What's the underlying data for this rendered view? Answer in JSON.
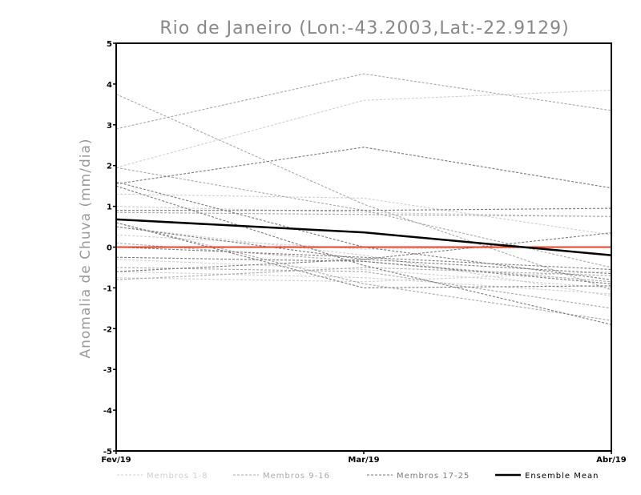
{
  "chart_data": {
    "type": "line",
    "title": "Rio de Janeiro (Lon:-43.2003,Lat:-22.9129)",
    "xlabel": "",
    "ylabel": "Anomalia de Chuva (mm/dia)",
    "categories": [
      "Fev/19",
      "Mar/19",
      "Abr/19"
    ],
    "ylim": [
      -5,
      5
    ],
    "yticks": [
      "5",
      "4",
      "3",
      "2",
      "1",
      "0",
      "-1",
      "-2",
      "-3",
      "-4",
      "-5"
    ],
    "grid": false,
    "legend_position": "bottom",
    "zero_line_color": "#e8412f",
    "groups": [
      {
        "name": "Membros 1-8",
        "color": "#cfcfcf",
        "series": [
          {
            "values": [
              1.95,
              3.6,
              3.85
            ]
          },
          {
            "values": [
              1.3,
              1.2,
              0.3
            ]
          },
          {
            "values": [
              1.0,
              0.85,
              0.75
            ]
          },
          {
            "values": [
              0.3,
              -0.05,
              0.0
            ]
          },
          {
            "values": [
              -0.3,
              -0.55,
              -1.0
            ]
          },
          {
            "values": [
              -0.6,
              -0.75,
              -1.15
            ]
          },
          {
            "values": [
              -0.75,
              -0.85,
              -0.6
            ]
          },
          {
            "values": [
              0.5,
              -0.2,
              -1.2
            ]
          }
        ]
      },
      {
        "name": "Membros 9-16",
        "color": "#a8a8a8",
        "series": [
          {
            "values": [
              2.9,
              4.25,
              3.35
            ]
          },
          {
            "values": [
              3.75,
              1.05,
              -1.05
            ]
          },
          {
            "values": [
              1.95,
              0.9,
              -0.5
            ]
          },
          {
            "values": [
              0.85,
              0.8,
              0.75
            ]
          },
          {
            "values": [
              0.1,
              -0.35,
              -0.85
            ]
          },
          {
            "values": [
              -0.5,
              -0.6,
              -1.5
            ]
          },
          {
            "values": [
              -0.8,
              -0.5,
              -0.7
            ]
          },
          {
            "values": [
              0.6,
              -0.9,
              -1.8
            ]
          }
        ]
      },
      {
        "name": "Membros 17-25",
        "color": "#7a7a7a",
        "series": [
          {
            "values": [
              1.55,
              2.45,
              1.45
            ]
          },
          {
            "values": [
              1.6,
              0.0,
              -0.8
            ]
          },
          {
            "values": [
              0.9,
              0.9,
              0.95
            ]
          },
          {
            "values": [
              0.5,
              -0.3,
              0.35
            ]
          },
          {
            "values": [
              0.0,
              -0.25,
              -0.55
            ]
          },
          {
            "values": [
              -0.25,
              -0.35,
              -0.9
            ]
          },
          {
            "values": [
              -0.6,
              -0.3,
              -0.65
            ]
          },
          {
            "values": [
              1.5,
              -0.45,
              -1.9
            ]
          },
          {
            "values": [
              0.6,
              -1.0,
              -0.95
            ]
          }
        ]
      }
    ],
    "ensemble_mean": {
      "name": "Ensemble Mean",
      "color": "#000000",
      "values": [
        0.68,
        0.36,
        -0.2
      ]
    }
  }
}
